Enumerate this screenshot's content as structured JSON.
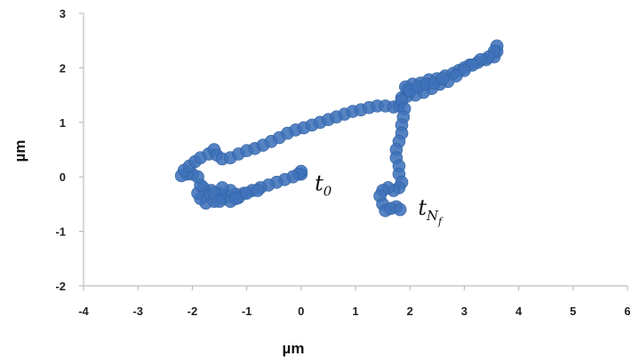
{
  "chart_data": {
    "type": "scatter",
    "xlabel": "µm",
    "ylabel": "µm",
    "xlim": [
      -4,
      6
    ],
    "ylim": [
      -2,
      3
    ],
    "x_ticks": [
      "-4",
      "-3",
      "-2",
      "-1",
      "0",
      "1",
      "2",
      "3",
      "4",
      "5",
      "6"
    ],
    "y_ticks": [
      "-2",
      "-1",
      "0",
      "1",
      "2",
      "3"
    ],
    "grid": false,
    "legend": "none",
    "marker_color": "#3f72b9",
    "annotations": [
      {
        "base": "t",
        "sub": "0",
        "subsub": "",
        "x": 0.25,
        "y": -0.25
      },
      {
        "base": "t",
        "sub": "N",
        "subsub": "f",
        "x": 2.15,
        "y": -0.7
      }
    ],
    "series": [
      {
        "points": [
          [
            0.0,
            0.05
          ],
          [
            0.0,
            0.1
          ],
          [
            -0.05,
            0.05
          ],
          [
            -0.15,
            0.0
          ],
          [
            -0.3,
            -0.05
          ],
          [
            -0.45,
            -0.1
          ],
          [
            -0.6,
            -0.15
          ],
          [
            -0.75,
            -0.2
          ],
          [
            -0.9,
            -0.25
          ],
          [
            -1.05,
            -0.3
          ],
          [
            -1.2,
            -0.32
          ],
          [
            -1.35,
            -0.35
          ],
          [
            -1.5,
            -0.3
          ],
          [
            -1.65,
            -0.25
          ],
          [
            -1.8,
            -0.2
          ],
          [
            -1.75,
            -0.35
          ],
          [
            -1.6,
            -0.45
          ],
          [
            -1.45,
            -0.4
          ],
          [
            -1.3,
            -0.45
          ],
          [
            -1.15,
            -0.38
          ],
          [
            -1.3,
            -0.25
          ],
          [
            -1.45,
            -0.2
          ],
          [
            -1.6,
            -0.3
          ],
          [
            -1.75,
            -0.48
          ],
          [
            -1.85,
            -0.4
          ],
          [
            -1.9,
            -0.3
          ],
          [
            -1.85,
            -0.15
          ],
          [
            -1.9,
            0.0
          ],
          [
            -2.0,
            0.05
          ],
          [
            -2.1,
            0.05
          ],
          [
            -2.2,
            0.02
          ],
          [
            -2.15,
            0.12
          ],
          [
            -2.05,
            0.2
          ],
          [
            -1.95,
            0.28
          ],
          [
            -1.85,
            0.35
          ],
          [
            -1.7,
            0.42
          ],
          [
            -1.6,
            0.5
          ],
          [
            -1.55,
            0.4
          ],
          [
            -1.45,
            0.33
          ],
          [
            -1.3,
            0.35
          ],
          [
            -1.15,
            0.42
          ],
          [
            -1.0,
            0.48
          ],
          [
            -0.85,
            0.52
          ],
          [
            -0.7,
            0.58
          ],
          [
            -0.55,
            0.65
          ],
          [
            -0.4,
            0.72
          ],
          [
            -0.25,
            0.8
          ],
          [
            -0.1,
            0.86
          ],
          [
            0.05,
            0.9
          ],
          [
            0.2,
            0.95
          ],
          [
            0.35,
            1.0
          ],
          [
            0.5,
            1.05
          ],
          [
            0.65,
            1.1
          ],
          [
            0.8,
            1.15
          ],
          [
            0.95,
            1.2
          ],
          [
            1.1,
            1.23
          ],
          [
            1.25,
            1.27
          ],
          [
            1.4,
            1.3
          ],
          [
            1.55,
            1.3
          ],
          [
            1.7,
            1.28
          ],
          [
            1.8,
            1.3
          ],
          [
            1.85,
            1.45
          ],
          [
            1.95,
            1.6
          ],
          [
            2.05,
            1.7
          ],
          [
            2.2,
            1.72
          ],
          [
            2.35,
            1.78
          ],
          [
            2.5,
            1.8
          ],
          [
            2.65,
            1.85
          ],
          [
            2.8,
            1.9
          ],
          [
            2.9,
            1.95
          ],
          [
            3.0,
            2.0
          ],
          [
            3.1,
            2.05
          ],
          [
            3.25,
            2.1
          ],
          [
            3.4,
            2.15
          ],
          [
            3.55,
            2.2
          ],
          [
            3.6,
            2.3
          ],
          [
            3.6,
            2.4
          ],
          [
            3.55,
            2.3
          ],
          [
            3.45,
            2.2
          ],
          [
            3.3,
            2.15
          ],
          [
            3.15,
            2.05
          ],
          [
            3.0,
            1.95
          ],
          [
            2.85,
            1.85
          ],
          [
            2.7,
            1.75
          ],
          [
            2.55,
            1.7
          ],
          [
            2.4,
            1.62
          ],
          [
            2.25,
            1.55
          ],
          [
            2.1,
            1.5
          ],
          [
            1.95,
            1.48
          ],
          [
            1.85,
            1.4
          ],
          [
            1.9,
            1.25
          ],
          [
            1.88,
            1.1
          ],
          [
            1.85,
            0.95
          ],
          [
            1.85,
            0.8
          ],
          [
            1.8,
            0.65
          ],
          [
            1.75,
            0.5
          ],
          [
            1.75,
            0.35
          ],
          [
            1.8,
            0.2
          ],
          [
            1.8,
            0.05
          ],
          [
            1.85,
            -0.1
          ],
          [
            1.8,
            -0.2
          ],
          [
            1.7,
            -0.25
          ],
          [
            1.6,
            -0.2
          ],
          [
            1.5,
            -0.25
          ],
          [
            1.45,
            -0.35
          ],
          [
            1.5,
            -0.5
          ],
          [
            1.55,
            -0.62
          ],
          [
            1.65,
            -0.58
          ],
          [
            1.75,
            -0.55
          ],
          [
            1.82,
            -0.6
          ],
          [
            1.92,
            1.65
          ],
          [
            2.0,
            1.58
          ],
          [
            2.15,
            1.65
          ],
          [
            2.3,
            1.7
          ],
          [
            2.45,
            1.72
          ],
          [
            2.6,
            1.8
          ],
          [
            -1.0,
            -0.3
          ],
          [
            -0.8,
            -0.25
          ],
          [
            -1.2,
            -0.4
          ],
          [
            -1.5,
            -0.45
          ]
        ]
      }
    ]
  }
}
